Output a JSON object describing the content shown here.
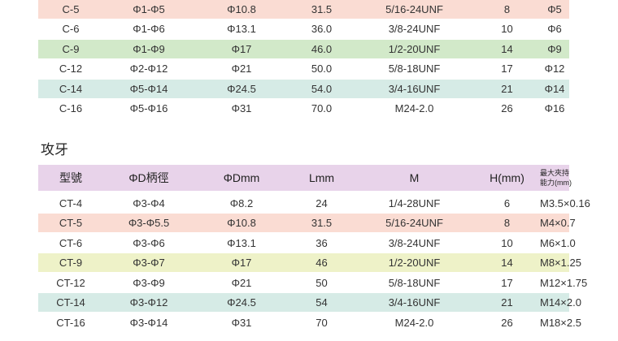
{
  "table1": {
    "rows": [
      {
        "c": [
          "C-5",
          "Φ1-Φ5",
          "Φ10.8",
          "31.5",
          "5/16-24UNF",
          "8",
          "Φ5"
        ],
        "bg": "#fadcd3"
      },
      {
        "c": [
          "C-6",
          "Φ1-Φ6",
          "Φ13.1",
          "36.0",
          "3/8-24UNF",
          "10",
          "Φ6"
        ],
        "bg": "#ffffff"
      },
      {
        "c": [
          "C-9",
          "Φ1-Φ9",
          "Φ17",
          "46.0",
          "1/2-20UNF",
          "14",
          "Φ9"
        ],
        "bg": "#d2e9c9"
      },
      {
        "c": [
          "C-12",
          "Φ2-Φ12",
          "Φ21",
          "50.0",
          "5/8-18UNF",
          "17",
          "Φ12"
        ],
        "bg": "#ffffff"
      },
      {
        "c": [
          "C-14",
          "Φ5-Φ14",
          "Φ24.5",
          "54.0",
          "3/4-16UNF",
          "21",
          "Φ14"
        ],
        "bg": "#d6ebe6"
      },
      {
        "c": [
          "C-16",
          "Φ5-Φ16",
          "Φ31",
          "70.0",
          "M24-2.0",
          "26",
          "Φ16"
        ],
        "bg": "#ffffff"
      }
    ]
  },
  "section2_title": "攻牙",
  "table2": {
    "headers": [
      "型號",
      "ΦD柄徑",
      "ΦDmm",
      "Lmm",
      "M",
      "H(mm)"
    ],
    "header_last_line1": "最大夾持",
    "header_last_line2": "能力(mm)",
    "rows": [
      {
        "c": [
          "CT-4",
          "Φ3-Φ4",
          "Φ8.2",
          "24",
          "1/4-28UNF",
          "6",
          "M3.5×0.16"
        ],
        "bg": "#ffffff"
      },
      {
        "c": [
          "CT-5",
          "Φ3-Φ5.5",
          "Φ10.8",
          "31.5",
          "5/16-24UNF",
          "8",
          "M4×0.7"
        ],
        "bg": "#fadcd3"
      },
      {
        "c": [
          "CT-6",
          "Φ3-Φ6",
          "Φ13.1",
          "36",
          "3/8-24UNF",
          "10",
          "M6×1.0"
        ],
        "bg": "#ffffff"
      },
      {
        "c": [
          "CT-9",
          "Φ3-Φ7",
          "Φ17",
          "46",
          "1/2-20UNF",
          "14",
          "M8×1.25"
        ],
        "bg": "#eef2c8"
      },
      {
        "c": [
          "CT-12",
          "Φ3-Φ9",
          "Φ21",
          "50",
          "5/8-18UNF",
          "17",
          "M12×1.75"
        ],
        "bg": "#ffffff"
      },
      {
        "c": [
          "CT-14",
          "Φ3-Φ12",
          "Φ24.5",
          "54",
          "3/4-16UNF",
          "21",
          "M14×2.0"
        ],
        "bg": "#d6ebe6"
      },
      {
        "c": [
          "CT-16",
          "Φ3-Φ14",
          "Φ31",
          "70",
          "M24-2.0",
          "26",
          "M18×2.5"
        ],
        "bg": "#ffffff"
      }
    ]
  }
}
